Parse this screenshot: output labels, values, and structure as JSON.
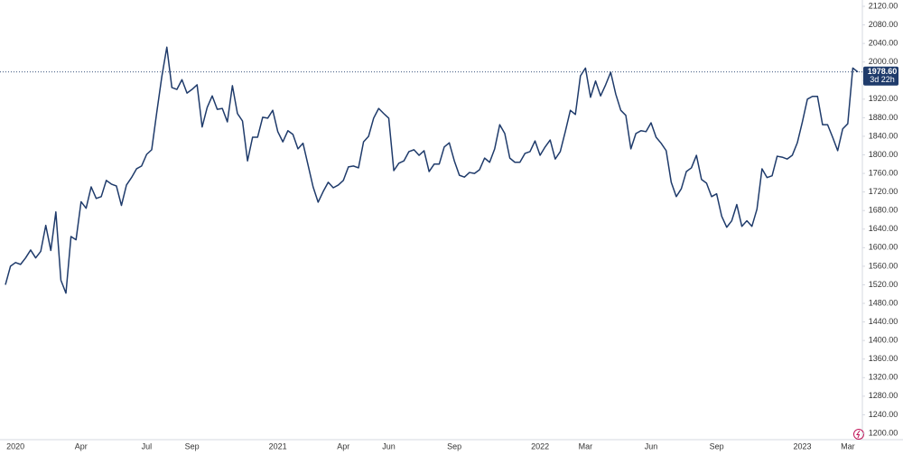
{
  "chart_data": {
    "type": "area",
    "categories": [
      null,
      null,
      "2020",
      null,
      null,
      null,
      null,
      null,
      null,
      null,
      null,
      null,
      null,
      null,
      null,
      "Apr",
      null,
      null,
      null,
      null,
      null,
      null,
      null,
      null,
      null,
      null,
      null,
      null,
      "Jul",
      null,
      null,
      null,
      null,
      null,
      null,
      null,
      null,
      "Sep",
      null,
      null,
      null,
      null,
      null,
      null,
      null,
      null,
      null,
      null,
      null,
      null,
      null,
      null,
      null,
      null,
      "2021",
      null,
      null,
      null,
      null,
      null,
      null,
      null,
      null,
      null,
      null,
      null,
      null,
      "Apr",
      null,
      null,
      null,
      null,
      null,
      null,
      null,
      null,
      "Jun",
      null,
      null,
      null,
      null,
      null,
      null,
      null,
      null,
      null,
      null,
      null,
      null,
      "Sep",
      null,
      null,
      null,
      null,
      null,
      null,
      null,
      null,
      null,
      null,
      null,
      null,
      null,
      null,
      null,
      null,
      "2022",
      null,
      null,
      null,
      null,
      null,
      null,
      null,
      null,
      "Mar",
      null,
      null,
      null,
      null,
      null,
      null,
      null,
      null,
      null,
      null,
      null,
      null,
      "Jun",
      null,
      null,
      null,
      null,
      null,
      null,
      null,
      null,
      null,
      null,
      null,
      null,
      "Sep",
      null,
      null,
      null,
      null,
      null,
      null,
      null,
      null,
      null,
      null,
      null,
      null,
      null,
      null,
      null,
      null,
      "2023",
      null,
      null,
      null,
      null,
      null,
      null,
      null,
      null,
      "Mar",
      null,
      null
    ],
    "values": [
      1520,
      1560,
      1568,
      1564,
      1578,
      1595,
      1578,
      1592,
      1648,
      1594,
      1677,
      1530,
      1502,
      1624,
      1617,
      1699,
      1685,
      1731,
      1706,
      1710,
      1745,
      1737,
      1733,
      1691,
      1735,
      1751,
      1770,
      1776,
      1801,
      1811,
      1891,
      1968,
      2032,
      1945,
      1941,
      1962,
      1933,
      1941,
      1951,
      1860,
      1902,
      1927,
      1898,
      1900,
      1871,
      1949,
      1889,
      1873,
      1787,
      1838,
      1838,
      1881,
      1879,
      1896,
      1850,
      1828,
      1852,
      1844,
      1813,
      1825,
      1778,
      1731,
      1698,
      1721,
      1741,
      1729,
      1735,
      1745,
      1774,
      1776,
      1772,
      1828,
      1840,
      1879,
      1900,
      1889,
      1879,
      1766,
      1782,
      1787,
      1807,
      1811,
      1799,
      1809,
      1764,
      1780,
      1780,
      1817,
      1826,
      1787,
      1756,
      1752,
      1762,
      1760,
      1768,
      1793,
      1784,
      1813,
      1865,
      1846,
      1793,
      1784,
      1784,
      1803,
      1807,
      1830,
      1799,
      1817,
      1832,
      1791,
      1807,
      1850,
      1896,
      1887,
      1970,
      1987,
      1924,
      1959,
      1927,
      1951,
      1978,
      1931,
      1896,
      1885,
      1813,
      1846,
      1852,
      1850,
      1869,
      1838,
      1825,
      1809,
      1741,
      1710,
      1727,
      1764,
      1772,
      1799,
      1747,
      1739,
      1710,
      1716,
      1668,
      1644,
      1658,
      1693,
      1646,
      1658,
      1646,
      1683,
      1770,
      1751,
      1755,
      1797,
      1795,
      1791,
      1799,
      1826,
      1871,
      1920,
      1926,
      1926,
      1865,
      1865,
      1838,
      1809,
      1856,
      1867,
      1987,
      1978.6
    ],
    "value_labels": {
      "169": "1978.60"
    },
    "countdown": "3d 22h",
    "color": "#1f3b6b",
    "ylim": [
      1200,
      2120
    ],
    "yticks": [
      {
        "value": 1200,
        "label": "1200.00"
      },
      {
        "value": 1240,
        "label": "1240.00"
      },
      {
        "value": 1280,
        "label": "1280.00"
      },
      {
        "value": 1320,
        "label": "1320.00"
      },
      {
        "value": 1360,
        "label": "1360.00"
      },
      {
        "value": 1400,
        "label": "1400.00"
      },
      {
        "value": 1440,
        "label": "1440.00"
      },
      {
        "value": 1480,
        "label": "1480.00"
      },
      {
        "value": 1520,
        "label": "1520.00"
      },
      {
        "value": 1560,
        "label": "1560.00"
      },
      {
        "value": 1600,
        "label": "1600.00"
      },
      {
        "value": 1640,
        "label": "1640.00"
      },
      {
        "value": 1680,
        "label": "1680.00"
      },
      {
        "value": 1720,
        "label": "1720.00"
      },
      {
        "value": 1760,
        "label": "1760.00"
      },
      {
        "value": 1800,
        "label": "1800.00"
      },
      {
        "value": 1840,
        "label": "1840.00"
      },
      {
        "value": 1880,
        "label": "1880.00"
      },
      {
        "value": 1920,
        "label": "1920.00"
      },
      {
        "value": 1960,
        "label": "1960.00"
      },
      {
        "value": 2000,
        "label": "2000.00"
      },
      {
        "value": 2040,
        "label": "2040.00"
      },
      {
        "value": 2080,
        "label": "2080.00"
      },
      {
        "value": 2120,
        "label": "2120.00"
      }
    ],
    "grid": false
  }
}
